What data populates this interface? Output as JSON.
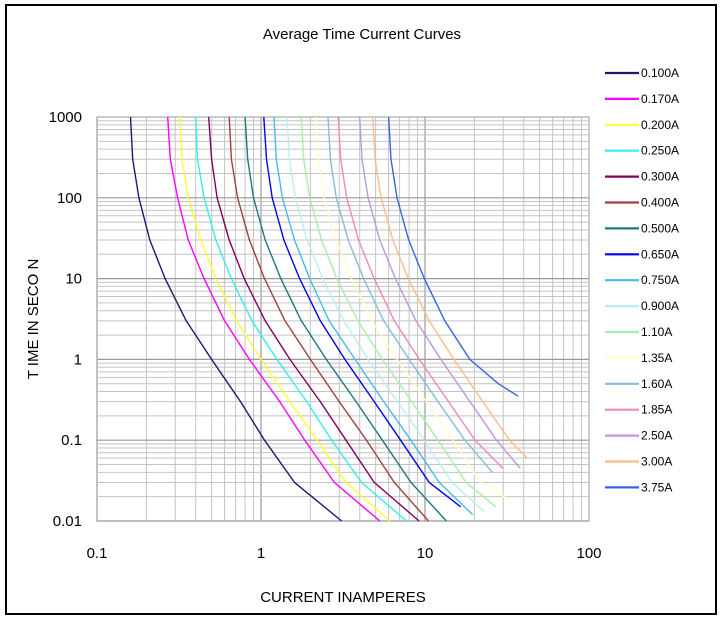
{
  "chart_data": {
    "type": "line",
    "title": "Average Time Current Curves",
    "xlabel": "CURRENT INAMPERES",
    "ylabel": "T IME IN SECO N",
    "x_scale": "log",
    "y_scale": "log",
    "xlim": [
      0.1,
      100
    ],
    "ylim": [
      0.01,
      1000
    ],
    "x_ticks": [
      "0.1",
      "1",
      "10",
      "100"
    ],
    "y_ticks": [
      "0.01",
      "0.1",
      "1",
      "10",
      "100",
      "1000"
    ],
    "grid": true,
    "legend_position": "right",
    "series": [
      {
        "name": "0.100A",
        "color": "#1a1a6e",
        "points": [
          [
            0.16,
            1000
          ],
          [
            0.165,
            300
          ],
          [
            0.18,
            100
          ],
          [
            0.21,
            30
          ],
          [
            0.26,
            10
          ],
          [
            0.35,
            3
          ],
          [
            0.5,
            1
          ],
          [
            0.75,
            0.3
          ],
          [
            1.05,
            0.1
          ],
          [
            1.6,
            0.03
          ],
          [
            3.1,
            0.01
          ]
        ]
      },
      {
        "name": "0.170A",
        "color": "#ff00ff",
        "points": [
          [
            0.27,
            1000
          ],
          [
            0.28,
            300
          ],
          [
            0.31,
            100
          ],
          [
            0.36,
            30
          ],
          [
            0.45,
            10
          ],
          [
            0.6,
            3
          ],
          [
            0.85,
            1
          ],
          [
            1.3,
            0.3
          ],
          [
            1.85,
            0.1
          ],
          [
            2.8,
            0.03
          ],
          [
            5.3,
            0.01
          ]
        ]
      },
      {
        "name": "0.200A",
        "color": "#ffff33",
        "points": [
          [
            0.32,
            1000
          ],
          [
            0.33,
            300
          ],
          [
            0.36,
            100
          ],
          [
            0.43,
            30
          ],
          [
            0.53,
            10
          ],
          [
            0.71,
            3
          ],
          [
            1.0,
            1
          ],
          [
            1.5,
            0.3
          ],
          [
            2.2,
            0.1
          ],
          [
            3.3,
            0.03
          ],
          [
            6.1,
            0.01
          ]
        ]
      },
      {
        "name": "0.250A",
        "color": "#33eeee",
        "points": [
          [
            0.4,
            1000
          ],
          [
            0.41,
            300
          ],
          [
            0.45,
            100
          ],
          [
            0.53,
            30
          ],
          [
            0.66,
            10
          ],
          [
            0.88,
            3
          ],
          [
            1.25,
            1
          ],
          [
            1.9,
            0.3
          ],
          [
            2.7,
            0.1
          ],
          [
            4.1,
            0.03
          ],
          [
            7.7,
            0.01
          ]
        ]
      },
      {
        "name": "0.300A",
        "color": "#800060",
        "points": [
          [
            0.48,
            1000
          ],
          [
            0.5,
            300
          ],
          [
            0.54,
            100
          ],
          [
            0.64,
            30
          ],
          [
            0.79,
            10
          ],
          [
            1.06,
            3
          ],
          [
            1.5,
            1
          ],
          [
            2.3,
            0.3
          ],
          [
            3.3,
            0.1
          ],
          [
            4.9,
            0.03
          ],
          [
            9.2,
            0.01
          ]
        ]
      },
      {
        "name": "0.400A",
        "color": "#a04040",
        "points": [
          [
            0.64,
            1000
          ],
          [
            0.66,
            300
          ],
          [
            0.72,
            100
          ],
          [
            0.85,
            30
          ],
          [
            1.05,
            10
          ],
          [
            1.4,
            3
          ],
          [
            2.0,
            1
          ],
          [
            3.0,
            0.3
          ],
          [
            4.4,
            0.1
          ],
          [
            6.5,
            0.03
          ],
          [
            10.5,
            0.01
          ]
        ]
      },
      {
        "name": "0.500A",
        "color": "#1a7a7a",
        "points": [
          [
            0.8,
            1000
          ],
          [
            0.83,
            300
          ],
          [
            0.9,
            100
          ],
          [
            1.06,
            30
          ],
          [
            1.32,
            10
          ],
          [
            1.76,
            3
          ],
          [
            2.5,
            1
          ],
          [
            3.8,
            0.3
          ],
          [
            5.5,
            0.1
          ],
          [
            8.2,
            0.03
          ],
          [
            13.5,
            0.01
          ]
        ]
      },
      {
        "name": "0.650A",
        "color": "#0000ee",
        "points": [
          [
            1.04,
            1000
          ],
          [
            1.08,
            300
          ],
          [
            1.17,
            100
          ],
          [
            1.38,
            30
          ],
          [
            1.72,
            10
          ],
          [
            2.3,
            3
          ],
          [
            3.25,
            1
          ],
          [
            4.9,
            0.3
          ],
          [
            7.1,
            0.1
          ],
          [
            10.6,
            0.03
          ],
          [
            16.5,
            0.015
          ]
        ]
      },
      {
        "name": "0.750A",
        "color": "#44bbee",
        "points": [
          [
            1.2,
            1000
          ],
          [
            1.24,
            300
          ],
          [
            1.35,
            100
          ],
          [
            1.6,
            30
          ],
          [
            1.98,
            10
          ],
          [
            2.6,
            3
          ],
          [
            3.75,
            1
          ],
          [
            5.6,
            0.3
          ],
          [
            8.2,
            0.1
          ],
          [
            12.2,
            0.03
          ],
          [
            19.5,
            0.012
          ]
        ]
      },
      {
        "name": "0.900A",
        "color": "#bbeeee",
        "points": [
          [
            1.44,
            1000
          ],
          [
            1.49,
            300
          ],
          [
            1.62,
            100
          ],
          [
            1.91,
            30
          ],
          [
            2.38,
            10
          ],
          [
            3.2,
            3
          ],
          [
            4.5,
            1
          ],
          [
            6.8,
            0.3
          ],
          [
            9.9,
            0.1
          ],
          [
            14.6,
            0.03
          ],
          [
            23.0,
            0.013
          ]
        ]
      },
      {
        "name": "1.10A",
        "color": "#aaeeaa",
        "points": [
          [
            1.76,
            1000
          ],
          [
            1.82,
            300
          ],
          [
            1.98,
            100
          ],
          [
            2.34,
            30
          ],
          [
            2.9,
            10
          ],
          [
            3.9,
            3
          ],
          [
            5.5,
            1
          ],
          [
            8.3,
            0.3
          ],
          [
            12,
            0.1
          ],
          [
            17.8,
            0.03
          ],
          [
            27,
            0.015
          ]
        ]
      },
      {
        "name": "1.35A",
        "color": "#ffffcc",
        "points": [
          [
            2.16,
            1000
          ],
          [
            2.23,
            300
          ],
          [
            2.43,
            100
          ],
          [
            2.87,
            30
          ],
          [
            3.56,
            10
          ],
          [
            4.75,
            3
          ],
          [
            6.75,
            1
          ],
          [
            10.2,
            0.3
          ],
          [
            14.8,
            0.1
          ],
          [
            21.8,
            0.03
          ],
          [
            33,
            0.018
          ]
        ]
      },
      {
        "name": "1.60A",
        "color": "#88bbdd",
        "points": [
          [
            2.56,
            1000
          ],
          [
            2.65,
            300
          ],
          [
            2.88,
            100
          ],
          [
            3.4,
            30
          ],
          [
            4.22,
            10
          ],
          [
            5.6,
            3
          ],
          [
            8.0,
            1
          ],
          [
            12,
            0.3
          ],
          [
            17.5,
            0.1
          ],
          [
            25.8,
            0.04
          ]
        ]
      },
      {
        "name": "1.85A",
        "color": "#ee88bb",
        "points": [
          [
            2.96,
            1000
          ],
          [
            3.06,
            300
          ],
          [
            3.33,
            100
          ],
          [
            3.93,
            30
          ],
          [
            4.9,
            10
          ],
          [
            6.5,
            3
          ],
          [
            9.25,
            1
          ],
          [
            13.9,
            0.3
          ],
          [
            20.2,
            0.1
          ],
          [
            29.8,
            0.045
          ]
        ]
      },
      {
        "name": "2.50A",
        "color": "#bb99dd",
        "points": [
          [
            4.0,
            1000
          ],
          [
            4.13,
            300
          ],
          [
            4.5,
            100
          ],
          [
            5.3,
            30
          ],
          [
            6.6,
            10
          ],
          [
            8.8,
            3
          ],
          [
            12.5,
            1
          ],
          [
            18.8,
            0.3
          ],
          [
            27.3,
            0.1
          ],
          [
            38,
            0.045
          ]
        ]
      },
      {
        "name": "3.00A",
        "color": "#ffbb88",
        "points": [
          [
            4.8,
            1000
          ],
          [
            4.96,
            300
          ],
          [
            5.4,
            100
          ],
          [
            6.37,
            30
          ],
          [
            7.9,
            10
          ],
          [
            10.6,
            3
          ],
          [
            15,
            1
          ],
          [
            22.5,
            0.3
          ],
          [
            32.8,
            0.1
          ],
          [
            42,
            0.06
          ]
        ]
      },
      {
        "name": "3.75A",
        "color": "#3366dd",
        "points": [
          [
            6.0,
            1000
          ],
          [
            6.2,
            300
          ],
          [
            6.75,
            100
          ],
          [
            7.96,
            30
          ],
          [
            9.9,
            10
          ],
          [
            13.2,
            3
          ],
          [
            18.75,
            1
          ],
          [
            28,
            0.5
          ],
          [
            37,
            0.35
          ]
        ]
      }
    ]
  }
}
